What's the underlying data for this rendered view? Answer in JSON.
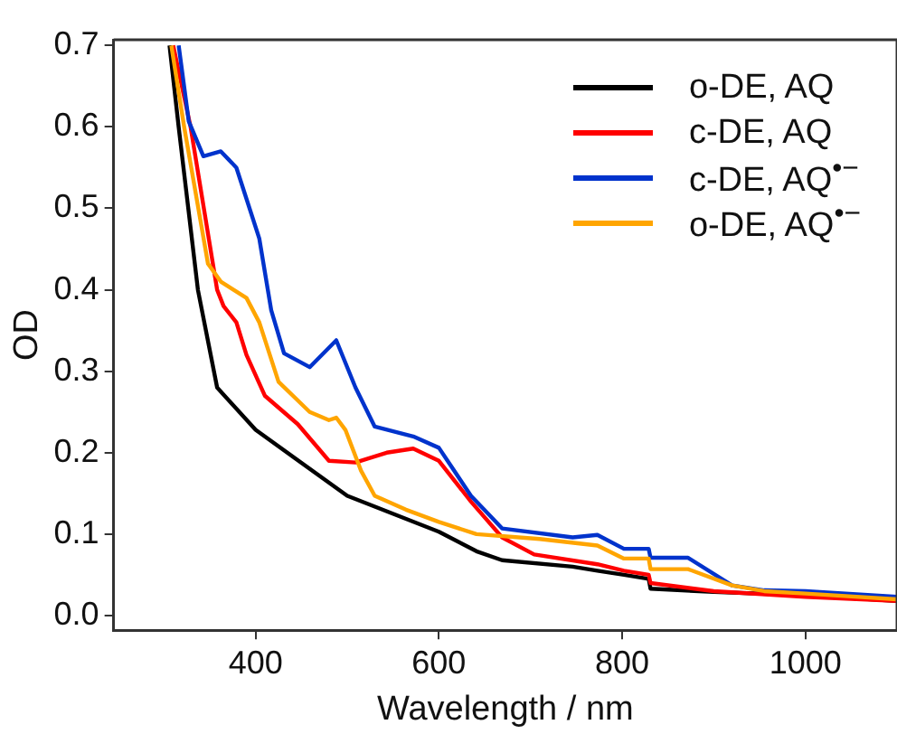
{
  "chart_data": {
    "type": "line",
    "xlabel": "Wavelength / nm",
    "ylabel": "OD",
    "xlim": [
      245,
      1100
    ],
    "ylim": [
      -0.018,
      0.707
    ],
    "xticks": [
      400,
      600,
      800,
      1000
    ],
    "yticks": [
      {
        "value": 0,
        "label": "0.0"
      },
      {
        "value": 0.1,
        "label": "0.1"
      },
      {
        "value": 0.2,
        "label": "0.2"
      },
      {
        "value": 0.3,
        "label": "0.3"
      },
      {
        "value": 0.4,
        "label": "0.4"
      },
      {
        "value": 0.5,
        "label": "0.5"
      },
      {
        "value": 0.6,
        "label": "0.6"
      },
      {
        "value": 0.7,
        "label": "0.7"
      }
    ],
    "grid": false,
    "legend": "top right",
    "marker": "none",
    "line_style": "solid",
    "series": [
      {
        "name": "o-DE, AQ",
        "color": "#000000",
        "x": [
          306,
          316,
          337,
          358,
          400,
          500,
          600,
          641,
          669,
          746,
          773,
          802,
          829,
          831,
          900,
          1000,
          1100
        ],
        "values": [
          0.7,
          0.6,
          0.4,
          0.28,
          0.228,
          0.147,
          0.103,
          0.079,
          0.068,
          0.06,
          0.055,
          0.05,
          0.045,
          0.033,
          0.029,
          0.025,
          0.018
        ]
      },
      {
        "name": "c-DE, AQ",
        "color": "#ff0000",
        "x": [
          310,
          329,
          358,
          365,
          379,
          390,
          410,
          446,
          480,
          509,
          543,
          572,
          600,
          635,
          669,
          704,
          773,
          802,
          829,
          831,
          900,
          1000,
          1100
        ],
        "values": [
          0.7,
          0.6,
          0.4,
          0.38,
          0.36,
          0.32,
          0.27,
          0.235,
          0.19,
          0.188,
          0.2,
          0.205,
          0.19,
          0.14,
          0.096,
          0.075,
          0.063,
          0.055,
          0.05,
          0.04,
          0.03,
          0.023,
          0.018
        ]
      },
      {
        "name": "c-DE, AQ$^{•−}$",
        "color": "#0033cc",
        "x": [
          316,
          327,
          343,
          362,
          379,
          404,
          417,
          431,
          459,
          488,
          509,
          530,
          572,
          600,
          635,
          669,
          746,
          773,
          802,
          829,
          831,
          872,
          920,
          955,
          1000,
          1100
        ],
        "values": [
          0.7,
          0.607,
          0.564,
          0.57,
          0.55,
          0.463,
          0.375,
          0.322,
          0.305,
          0.338,
          0.28,
          0.232,
          0.22,
          0.206,
          0.147,
          0.107,
          0.096,
          0.099,
          0.082,
          0.082,
          0.071,
          0.071,
          0.037,
          0.031,
          0.03,
          0.023
        ]
      },
      {
        "name": "o-DE, AQ$^{•−}$",
        "color": "#ffa500",
        "x": [
          308,
          322,
          348,
          362,
          390,
          404,
          425,
          459,
          480,
          488,
          498,
          515,
          530,
          564,
          600,
          641,
          710,
          773,
          802,
          829,
          831,
          872,
          920,
          955,
          1000,
          1100
        ],
        "values": [
          0.7,
          0.6,
          0.432,
          0.41,
          0.39,
          0.36,
          0.287,
          0.25,
          0.24,
          0.243,
          0.228,
          0.178,
          0.147,
          0.13,
          0.115,
          0.1,
          0.094,
          0.086,
          0.07,
          0.07,
          0.057,
          0.057,
          0.037,
          0.03,
          0.027,
          0.02
        ]
      }
    ]
  }
}
